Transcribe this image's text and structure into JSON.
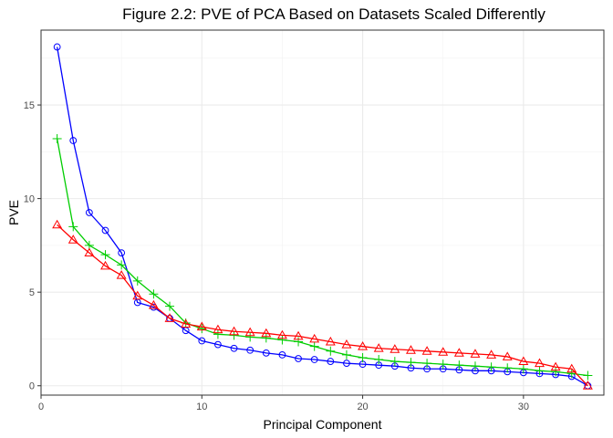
{
  "chart_data": {
    "type": "line",
    "title": "Figure 2.2: PVE of PCA Based on Datasets Scaled Differently",
    "xlabel": "Principal Component",
    "ylabel": "PVE",
    "xlim": [
      0,
      35
    ],
    "ylim": [
      -0.5,
      19.0
    ],
    "x_ticks": [
      0,
      10,
      20,
      30
    ],
    "y_ticks": [
      0,
      5,
      10,
      15
    ],
    "grid": true,
    "legend": "none",
    "x": [
      1,
      2,
      3,
      4,
      5,
      6,
      7,
      8,
      9,
      10,
      11,
      12,
      13,
      14,
      15,
      16,
      17,
      18,
      19,
      20,
      21,
      22,
      23,
      24,
      25,
      26,
      27,
      28,
      29,
      30,
      31,
      32,
      33,
      34
    ],
    "series": [
      {
        "color": "#0000ff",
        "marker": "circle",
        "values": [
          18.1,
          13.1,
          9.25,
          8.3,
          7.1,
          4.45,
          4.2,
          3.6,
          2.95,
          2.4,
          2.2,
          2.0,
          1.9,
          1.75,
          1.65,
          1.45,
          1.4,
          1.3,
          1.2,
          1.15,
          1.1,
          1.05,
          0.95,
          0.9,
          0.9,
          0.85,
          0.8,
          0.8,
          0.75,
          0.7,
          0.65,
          0.6,
          0.5,
          0.0
        ]
      },
      {
        "color": "#00cd00",
        "marker": "plus",
        "values": [
          13.2,
          8.5,
          7.5,
          7.0,
          6.45,
          5.6,
          4.9,
          4.25,
          3.35,
          3.05,
          2.75,
          2.7,
          2.6,
          2.55,
          2.45,
          2.35,
          2.1,
          1.85,
          1.65,
          1.5,
          1.4,
          1.3,
          1.25,
          1.2,
          1.15,
          1.1,
          1.05,
          1.0,
          0.95,
          0.9,
          0.8,
          0.75,
          0.65,
          0.55
        ]
      },
      {
        "color": "#ff0000",
        "marker": "triangle",
        "values": [
          8.6,
          7.8,
          7.1,
          6.4,
          5.9,
          4.8,
          4.3,
          3.6,
          3.3,
          3.15,
          3.0,
          2.9,
          2.85,
          2.8,
          2.7,
          2.65,
          2.5,
          2.35,
          2.2,
          2.1,
          2.0,
          1.95,
          1.9,
          1.85,
          1.8,
          1.75,
          1.7,
          1.65,
          1.55,
          1.3,
          1.2,
          1.0,
          0.9,
          0.0
        ]
      }
    ]
  }
}
